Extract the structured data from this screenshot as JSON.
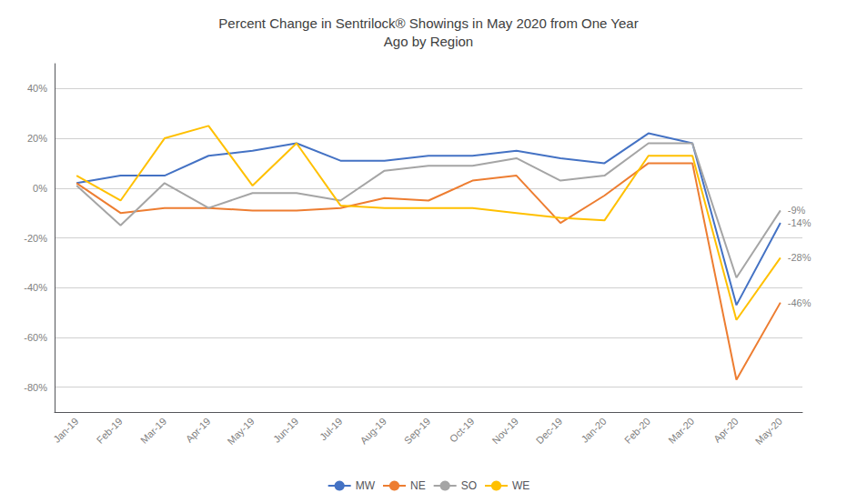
{
  "chart_data": {
    "type": "line",
    "title": "Percent Change in Sentrilock® Showings in May 2020 from One Year\nAgo by Region",
    "categories": [
      "Jan-19",
      "Feb-19",
      "Mar-19",
      "Apr-19",
      "May-19",
      "Jun-19",
      "Jul-19",
      "Aug-19",
      "Sep-19",
      "Oct-19",
      "Nov-19",
      "Dec-19",
      "Jan-20",
      "Feb-20",
      "Mar-20",
      "Apr-20",
      "May-20"
    ],
    "series": [
      {
        "name": "MW",
        "color": "#4472C4",
        "values": [
          2,
          5,
          5,
          13,
          15,
          18,
          11,
          11,
          13,
          13,
          15,
          12,
          10,
          22,
          18,
          -47,
          -14
        ]
      },
      {
        "name": "NE",
        "color": "#ED7D31",
        "values": [
          2,
          -10,
          -8,
          -8,
          -9,
          -9,
          -8,
          -4,
          -5,
          3,
          5,
          -14,
          -3,
          10,
          10,
          -77,
          -46
        ]
      },
      {
        "name": "SO",
        "color": "#A5A5A5",
        "values": [
          1,
          -15,
          2,
          -8,
          -2,
          -2,
          -5,
          7,
          9,
          9,
          12,
          3,
          5,
          18,
          18,
          -36,
          -9
        ]
      },
      {
        "name": "WE",
        "color": "#FFC000",
        "values": [
          5,
          -5,
          20,
          25,
          1,
          18,
          -7,
          -8,
          -8,
          -8,
          -10,
          -12,
          -13,
          13,
          13,
          -53,
          -28
        ]
      }
    ],
    "ylim": [
      -90,
      50
    ],
    "yticks": [
      {
        "value": -80,
        "label": "-80%"
      },
      {
        "value": -60,
        "label": "-60%"
      },
      {
        "value": -40,
        "label": "-40%"
      },
      {
        "value": -20,
        "label": "-20%"
      },
      {
        "value": 0,
        "label": "0%"
      },
      {
        "value": 20,
        "label": "20%"
      },
      {
        "value": 40,
        "label": "40%"
      }
    ],
    "annotations": [
      {
        "text": "-9%",
        "x": "May-20",
        "y": -9
      },
      {
        "text": "-14%",
        "x": "May-20",
        "y": -14
      },
      {
        "text": "-28%",
        "x": "May-20",
        "y": -28
      },
      {
        "text": "-46%",
        "x": "May-20",
        "y": -46
      }
    ],
    "grid": true,
    "legend": "bottom"
  }
}
